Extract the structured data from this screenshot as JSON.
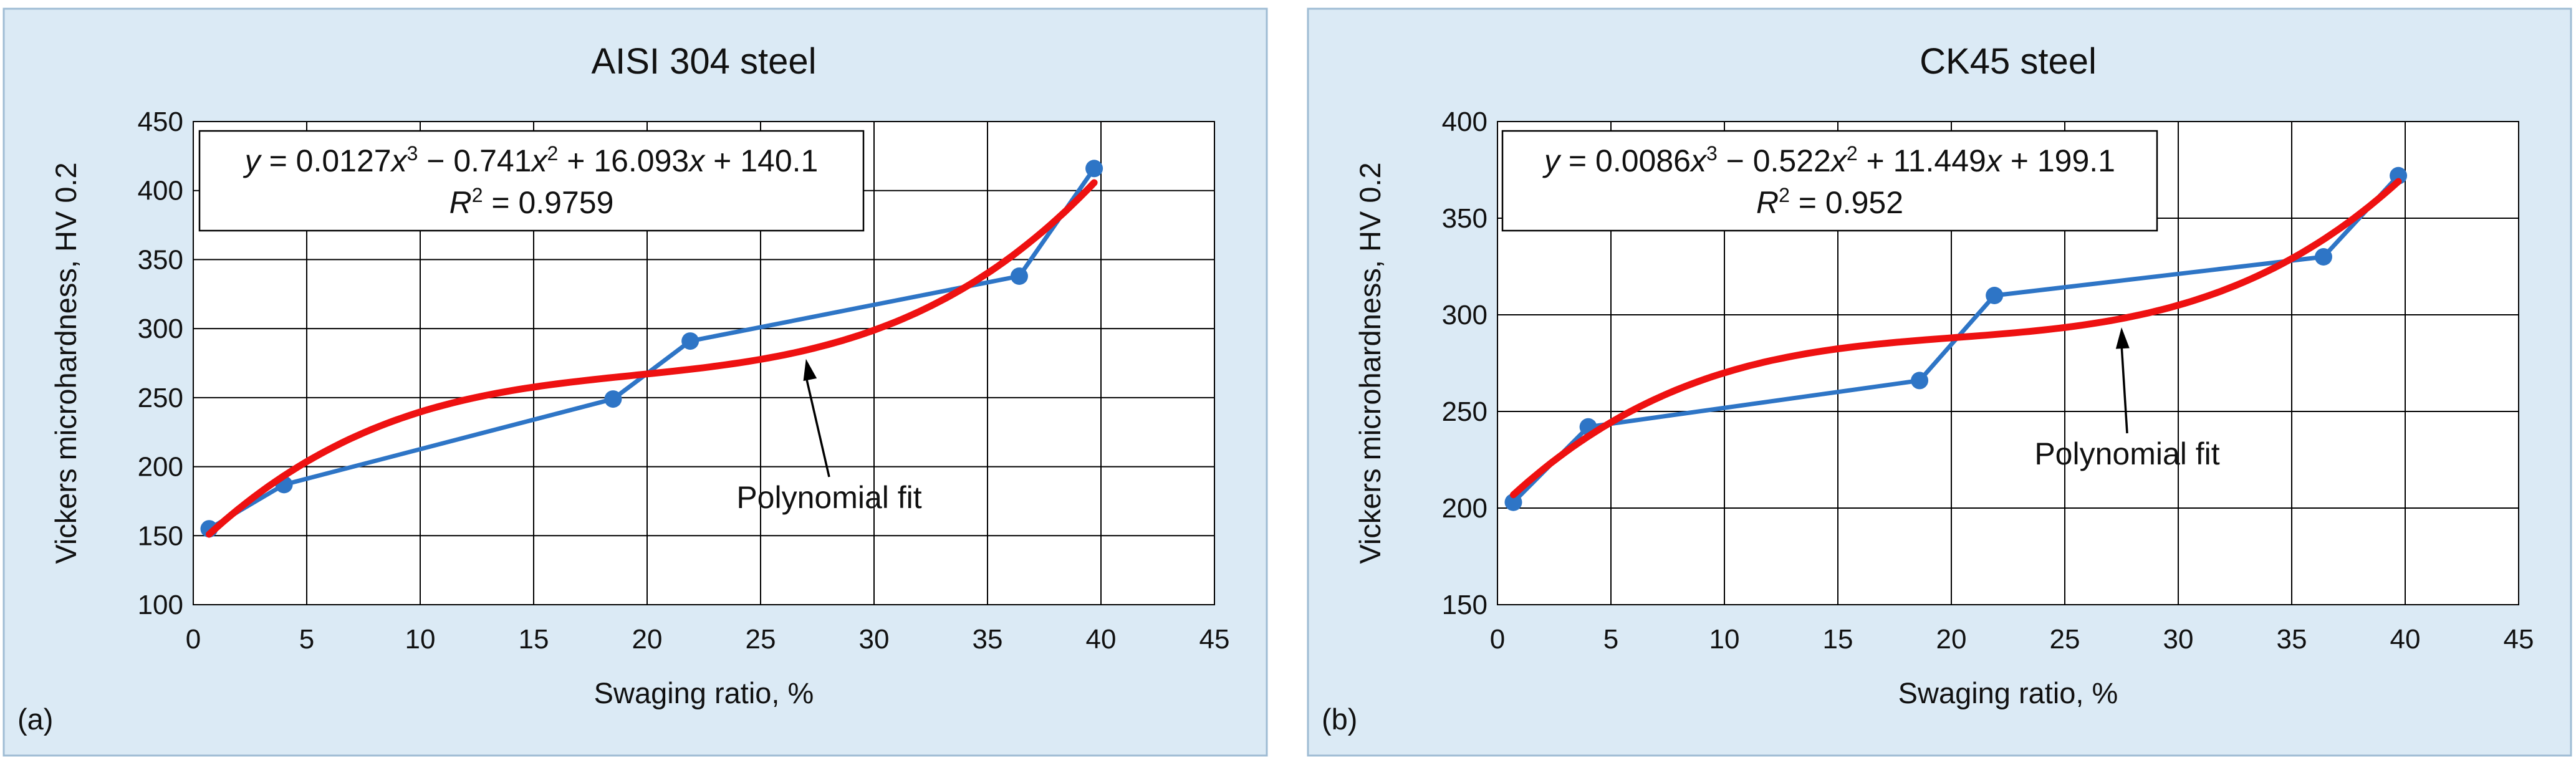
{
  "chart_data": [
    {
      "type": "line",
      "panel_label": "(a)",
      "title": "AISI 304 steel",
      "xlabel": "Swaging ratio, %",
      "ylabel": "Vickers microhardness,  HV 0.2",
      "xlim": [
        0,
        45
      ],
      "ylim": [
        100,
        450
      ],
      "x_ticks": [
        0,
        5,
        10,
        15,
        20,
        25,
        30,
        35,
        40,
        45
      ],
      "y_ticks": [
        100,
        150,
        200,
        250,
        300,
        350,
        400,
        450
      ],
      "grid": true,
      "series": [
        {
          "x": [
            0.7,
            4,
            18.5,
            21.9,
            36.4,
            39.7
          ],
          "y": [
            155,
            187,
            249,
            291,
            338,
            416
          ],
          "color": "#2e75c6"
        }
      ],
      "fit": {
        "coefficients": [
          0.0127,
          -0.741,
          16.093,
          140.1
        ],
        "x_range": [
          0.7,
          39.7
        ],
        "color": "#ee1111"
      },
      "equation": {
        "parts": [
          "y",
          " = 0.0127",
          "x",
          "3",
          " − 0.741",
          "x",
          "2",
          " + 16.093",
          "x",
          " + 140.1"
        ],
        "r2_label": "R",
        "r2_sup": "2",
        "r2_value": " = 0.9759"
      },
      "annotation": {
        "text": "Polynomial fit",
        "target_x": 27
      }
    },
    {
      "type": "line",
      "panel_label": "(b)",
      "title": "CK45 steel",
      "xlabel": "Swaging ratio, %",
      "ylabel": "Vickers microhardness,  HV 0.2",
      "xlim": [
        0,
        45
      ],
      "ylim": [
        150,
        400
      ],
      "x_ticks": [
        0,
        5,
        10,
        15,
        20,
        25,
        30,
        35,
        40,
        45
      ],
      "y_ticks": [
        150,
        200,
        250,
        300,
        350,
        400
      ],
      "grid": true,
      "series": [
        {
          "x": [
            0.7,
            4,
            18.6,
            21.9,
            36.4,
            39.7
          ],
          "y": [
            203,
            242,
            266,
            310,
            330,
            372
          ],
          "color": "#2e75c6"
        }
      ],
      "fit": {
        "coefficients": [
          0.0086,
          -0.522,
          11.449,
          199.1
        ],
        "x_range": [
          0.7,
          39.7
        ],
        "color": "#ee1111"
      },
      "equation": {
        "parts": [
          "y",
          " = 0.0086",
          "x",
          "3",
          " − 0.522",
          "x",
          "2",
          " + 11.449",
          "x",
          " + 199.1"
        ],
        "r2_label": "R",
        "r2_sup": "2",
        "r2_value": " = 0.952"
      },
      "annotation": {
        "text": "Polynomial fit",
        "target_x": 27.5
      }
    }
  ]
}
